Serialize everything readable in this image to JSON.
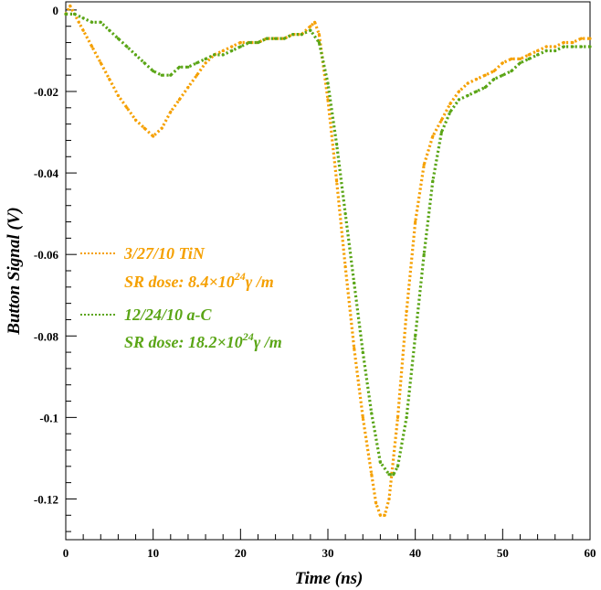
{
  "chart_data": {
    "type": "scatter",
    "xlabel": "Time (ns)",
    "ylabel": "Button Signal (V)",
    "xlim": [
      0,
      60
    ],
    "ylim": [
      -0.13,
      0.002
    ],
    "x_ticks": [
      0,
      10,
      20,
      30,
      40,
      50,
      60
    ],
    "x_tick_labels": [
      "0",
      "10",
      "20",
      "30",
      "40",
      "50",
      "60"
    ],
    "y_ticks": [
      0,
      -0.02,
      -0.04,
      -0.06,
      -0.08,
      -0.1,
      -0.12
    ],
    "y_tick_labels": [
      "0",
      "-0.02",
      "-0.04",
      "-0.06",
      "-0.08",
      "-0.1",
      "-0.12"
    ],
    "grid": false,
    "legend_position": "left-middle",
    "series": [
      {
        "name": "3/27/10 TiN",
        "name_line2_prefix": "SR dose: 8.4×10",
        "name_line2_sup": "24",
        "name_line2_suffix": "γ /m",
        "color": "#f5a000",
        "x": [
          0,
          0.5,
          1,
          1.5,
          2,
          3,
          4,
          5,
          6,
          7,
          8,
          9,
          10,
          11,
          12,
          13,
          14,
          15,
          16,
          17,
          18,
          19,
          20,
          21,
          22,
          23,
          24,
          25,
          26,
          27,
          28,
          28.5,
          29,
          30,
          31,
          32,
          33,
          34,
          35,
          35.5,
          36,
          36.5,
          37,
          38,
          39,
          40,
          41,
          42,
          43,
          44,
          45,
          46,
          47,
          48,
          49,
          50,
          51,
          52,
          53,
          54,
          55,
          56,
          57,
          58,
          59,
          60
        ],
        "y": [
          -0.001,
          0.001,
          -0.001,
          -0.003,
          -0.005,
          -0.009,
          -0.013,
          -0.017,
          -0.021,
          -0.024,
          -0.027,
          -0.029,
          -0.031,
          -0.029,
          -0.025,
          -0.022,
          -0.019,
          -0.016,
          -0.013,
          -0.011,
          -0.01,
          -0.009,
          -0.008,
          -0.008,
          -0.008,
          -0.007,
          -0.007,
          -0.007,
          -0.006,
          -0.006,
          -0.004,
          -0.003,
          -0.006,
          -0.022,
          -0.042,
          -0.063,
          -0.083,
          -0.1,
          -0.114,
          -0.121,
          -0.124,
          -0.124,
          -0.12,
          -0.1,
          -0.074,
          -0.052,
          -0.038,
          -0.031,
          -0.027,
          -0.023,
          -0.02,
          -0.018,
          -0.017,
          -0.016,
          -0.015,
          -0.013,
          -0.012,
          -0.012,
          -0.011,
          -0.01,
          -0.009,
          -0.009,
          -0.008,
          -0.008,
          -0.007,
          -0.007
        ]
      },
      {
        "name": "12/24/10 a-C",
        "name_line2_prefix": "SR dose: 18.2×10",
        "name_line2_sup": "24",
        "name_line2_suffix": "γ /m",
        "color": "#5aa516",
        "x": [
          0,
          1,
          2,
          3,
          4,
          5,
          6,
          7,
          8,
          9,
          10,
          11,
          12,
          13,
          14,
          15,
          16,
          17,
          18,
          19,
          20,
          21,
          22,
          23,
          24,
          25,
          26,
          27,
          28,
          29,
          30,
          31,
          32,
          33,
          34,
          35,
          36,
          37,
          37.5,
          38,
          39,
          40,
          41,
          42,
          43,
          44,
          45,
          46,
          47,
          48,
          49,
          50,
          51,
          52,
          53,
          54,
          55,
          56,
          57,
          58,
          59,
          60
        ],
        "y": [
          -0.001,
          -0.001,
          -0.002,
          -0.003,
          -0.003,
          -0.005,
          -0.007,
          -0.009,
          -0.011,
          -0.013,
          -0.015,
          -0.016,
          -0.016,
          -0.014,
          -0.014,
          -0.013,
          -0.012,
          -0.011,
          -0.011,
          -0.01,
          -0.009,
          -0.008,
          -0.008,
          -0.007,
          -0.007,
          -0.007,
          -0.006,
          -0.006,
          -0.005,
          -0.008,
          -0.018,
          -0.033,
          -0.05,
          -0.067,
          -0.084,
          -0.099,
          -0.111,
          -0.114,
          -0.114,
          -0.112,
          -0.1,
          -0.08,
          -0.06,
          -0.042,
          -0.03,
          -0.025,
          -0.022,
          -0.021,
          -0.02,
          -0.019,
          -0.017,
          -0.016,
          -0.015,
          -0.013,
          -0.012,
          -0.011,
          -0.01,
          -0.01,
          -0.009,
          -0.009,
          -0.009,
          -0.009
        ]
      }
    ]
  }
}
